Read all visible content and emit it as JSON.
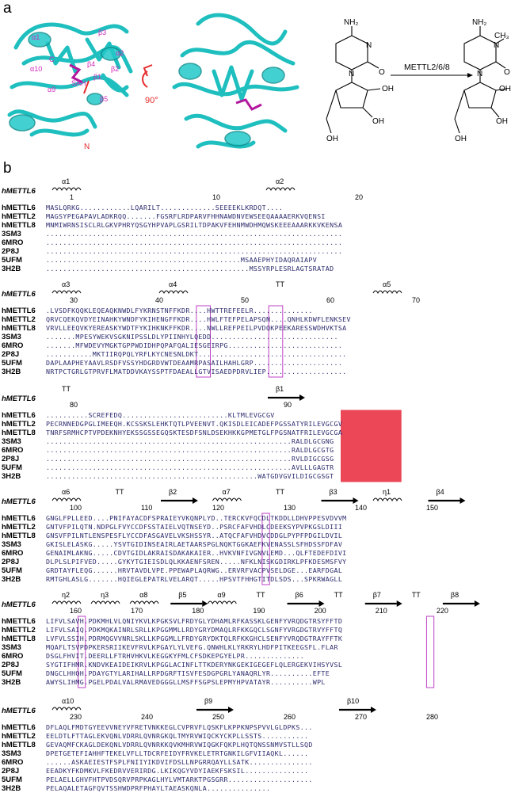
{
  "panel_a": {
    "label": "a",
    "rotation": "90°",
    "residue_labels": [
      "β3",
      "α1",
      "SAH",
      "β4",
      "β1",
      "β2",
      "β5",
      "α10",
      "α2",
      "α9",
      "N",
      "C"
    ],
    "reaction": {
      "enzyme": "METTL2/6/8",
      "substrate_groups": [
        "NH₂",
        "N",
        "N",
        "O",
        "OH",
        "OH",
        "OH"
      ],
      "product_groups": [
        "NH₂",
        "N",
        "CH₃",
        "N",
        "O",
        "OH",
        "OH",
        "OH"
      ]
    }
  },
  "panel_b": {
    "label": "b",
    "blocks": [
      {
        "ref": "hMETTL6",
        "ss_top": [
          "α1",
          "α2"
        ],
        "numbers": [
          "1",
          "10",
          "20"
        ],
        "rows": [
          {
            "name": "hMETTL6",
            "seq": "MASLQRKG............LQARILT.............SEEEEKLKRDQT...."
          },
          {
            "name": "hMETTL2",
            "seq": "MAGSYPEGAPAVLADKRQQ.......FGSRFLRDPARVFHHNAWDNVEWSEEQAAAAERKVQENSI"
          },
          {
            "name": "hMETTL8",
            "seq": "MNMIWRNSISCLRLGKVPHRYQSGYHPVAPLGSRILTDPAKVFEHNMWDHMQWSKEEEAAARKKVKENSA"
          },
          {
            "name": "3SM3",
            "seq": "......................................................................"
          },
          {
            "name": "6MRO",
            "seq": "......................................................................"
          },
          {
            "name": "2P8J",
            "seq": "......................................................................"
          },
          {
            "name": "5UFM",
            "seq": "..............................................MSAAEPHYIDAQRAIAPV"
          },
          {
            "name": "3H2B",
            "seq": "................................................MSSYRPLESRLAGTSRATAD"
          }
        ]
      },
      {
        "ref": "hMETTL6",
        "ss_top": [
          "α3",
          "α4",
          "TT",
          "α5"
        ],
        "numbers": [
          "30",
          "40",
          "50",
          "60",
          "70"
        ],
        "rows": [
          {
            "name": "hMETTL6",
            "seq": ".LVSDFKQQKLEQEAQKNWDLFYKRNSTNFFKDR....HWTTREFEELR.............."
          },
          {
            "name": "hMETTL2",
            "seq": "QRVCQEKQVDYEINAHKYWNDFYKIHENGFFKDR....HWLFTEFPELAPSQN....QNHLKDWFLENKSEV"
          },
          {
            "name": "hMETTL8",
            "seq": "VRVLLEEQVKYEREASKYWDTFYKIHKNKFFKDR....NWLLREFPEILPVDQKPEEKARESSWDHVKTSA"
          },
          {
            "name": "3SM3",
            "seq": ".......MPESYWEKVSGKNIPSSLDLYPIINHYLQEDD.............................."
          },
          {
            "name": "6MRO",
            "seq": ".......MFWDEVYMGKTGPPWDIDHPQPAFQALIESGEIRPG..........................."
          },
          {
            "name": "2P8J",
            "seq": "...........MKTIIRQPQLYRFLKYCNESNLDKT..................................."
          },
          {
            "name": "5UFM",
            "seq": "DAPLAAPHEYAAVLRSDFVSSYHDGRDVWTDEAAMRPASAILHAHLGRP....................."
          },
          {
            "name": "3H2B",
            "seq": "NRTPCTGRLGTPRVFLMATDDVKAYSSPTFDAEALLGTVISAEDPDRVLIEP..................."
          }
        ]
      },
      {
        "ref": "hMETTL6",
        "ss_top": [
          "TT",
          "β1"
        ],
        "numbers": [
          "80",
          "90"
        ],
        "rows": [
          {
            "name": "hMETTL6",
            "seq": "..........SCREFEDQ.........................KLTMLEVGCGV"
          },
          {
            "name": "hMETTL2",
            "seq": "PECRNNEDGPGLIMEEQH.KCSSKSLEHKTQTLPVEENVT.QKISDLEICADEFPGSSATYRILEVGCGV"
          },
          {
            "name": "hMETTL8",
            "seq": "TNRFSRMHCPTVPDEKNHYEKSSGSSEGQSKTESDFSNLDSEKHKKGPMETGLFPGSNATFRILEVGCGA"
          },
          {
            "name": "3SM3",
            "seq": "..........................................................RALDLGCGNG"
          },
          {
            "name": "6MRO",
            "seq": "..........................................................RALDLGCGTG"
          },
          {
            "name": "2P8J",
            "seq": "..........................................................RVLDIGCGSG"
          },
          {
            "name": "5UFM",
            "seq": "..........................................................AVLLLGAGTR"
          },
          {
            "name": "3H2B",
            "seq": "..................................................WATGDVGVILDIGCGSGT"
          }
        ]
      },
      {
        "ref": "hMETTL6",
        "ss_top": [
          "α6",
          "TT",
          "β2",
          "α7",
          "TT",
          "β3",
          "η1",
          "β4"
        ],
        "numbers": [
          "100",
          "110",
          "120",
          "130",
          "140",
          "150"
        ],
        "rows": [
          {
            "name": "hMETTL6",
            "seq": "GNGLFPLLEED....PNIFAYACDFSPRAIEYVKQNPLYD..TERCKVFQCDLTKDDLLDHVPPESVDVVM"
          },
          {
            "name": "hMETTL2",
            "seq": "GNTVFPILQTN.NDPGLFVYCCDFSSTAIELVQTNSEYD..PSRCFAFVHDLCDEEKSYPVPKGSLDIII"
          },
          {
            "name": "hMETTL8",
            "seq": "GNSVFPILNTLENSPESFLYCCDFASGAVELVKSHSSYR..ATQCFAFVHDVCDDGLPYPFPDGILDVIL"
          },
          {
            "name": "3SM3",
            "seq": "GKISLELASKG.....YSVTGIDINSEAIRLAETAARSPGLNQKTGGKAEFKVENASSLSFHDSSFDFAV"
          },
          {
            "name": "6MRO",
            "seq": "GENAIMLAKNG.....CDVTGIDLAKRAISDAKAKAIER..HVKVNFIVGNVLEMD...QLFTEDEFDIVI"
          },
          {
            "name": "2P8J",
            "seq": "DLPLSLPIFVED.....GYKYTGIEISDLQLKKAENFSREN.....NFKLNISKGDIRKLPFKDESMSFVY"
          },
          {
            "name": "5UFM",
            "seq": "GRDTAYFLEQG......HRVTAVDLVPE.PPEWAPLAQRWG..ERVRFVACPVSELDGE...EARFDGAL"
          },
          {
            "name": "3H2B",
            "seq": "RMTGHLASLG.......HQIEGLEPATRLVELARQT.....HPSVTFHHGTITDLSDS...SPKRWAGLL"
          }
        ]
      },
      {
        "ref": "hMETTL6",
        "ss_top": [
          "η2",
          "η3",
          "α8",
          "β5",
          "α9",
          "TT",
          "β6",
          "TT",
          "β7",
          "TT",
          "β8"
        ],
        "numbers": [
          "160",
          "170",
          "180",
          "190",
          "200",
          "210",
          "220"
        ],
        "rows": [
          {
            "name": "hMETTL6",
            "seq": "LIFVLSAVH.PDKMHLVLQNIYKVLKPGKSVLFRDYGLYDHAMLRFKASSKLGENFYVRQDGTRSYFFTD"
          },
          {
            "name": "hMETTL2",
            "seq": "LIFVLSAIQ.PDKMQKAINRLSRLLKPGGMMLLRDYGRYDMAQLRFKKGQCLSGNFYVRGDGTRVYFFTQ"
          },
          {
            "name": "hMETTL8",
            "seq": "LVFVLSSIH.PDRMQGVVNRLSKLLKPGGMLLFRDYGRYDKTQLRFKKGHCLSENFYVRQDGTRAYFFTK"
          },
          {
            "name": "3SM3",
            "seq": "MQAFLTSVPDPKERSRIIKEVFRVLKPGAYLYLVEFG.QNWHLKLYRKRYLHDFPITKEEGSFL.FLAR"
          },
          {
            "name": "6MRO",
            "seq": "DSGLFHVIT.DEERLLFTRHVHKVLKEGGKYFMLCFSDKEPGYELPR.............."
          },
          {
            "name": "2P8J",
            "seq": "SYGTIFHMR.KNDVKEAIDEIKRVLKPGGLACINFLTTKDERYNKGEKIGEGEFLQLERGEKVIHSYVSL"
          },
          {
            "name": "5UFM",
            "seq": "DNGCLHHQH.PDAYGTYLARIHALLRPDGRFTISVFESDGPGRLYANAQRLYR..........EFTE"
          },
          {
            "name": "3H2B",
            "seq": "AWYSLIHMG.PGELPDALVALRMAVEDGGGLLMSFFSGPSLEPMYHPVATAYR..........WPL"
          }
        ]
      },
      {
        "ref": "hMETTL6",
        "ss_top": [
          "α10",
          "β9",
          "β10"
        ],
        "numbers": [
          "230",
          "240",
          "250",
          "260",
          "270",
          "280"
        ],
        "rows": [
          {
            "name": "hMETTL6",
            "seq": "DFLAQLFMDTGYEEVVNEYVFRETVNKKEGLCVPRVFLQSKFLKPPKNPSPVVLGLDPKS..."
          },
          {
            "name": "hMETTL2",
            "seq": "EELDTLFTTAGLEKVQNLVDRRLQVNRGKQLTMYRVWIQCKYCKPLLSSTS..........."
          },
          {
            "name": "hMETTL8",
            "seq": "GEVAQMFCKAGLDEKQNLVDRRLQVNRKKQVKMHRVWIQGKFQKPLHQTQNSSNMVSTLLSQD"
          },
          {
            "name": "3SM3",
            "seq": "DPETGETEFIAHHFTEKELVFLLTDCRFEIDYFRVKELETRTGNKILGFVIIAQKL......"
          },
          {
            "name": "6MRO",
            "seq": "......ASKAEIESTFSPLFNIIYIKDVIFDSLLNPGRRQAYLLSATK..............."
          },
          {
            "name": "2P8J",
            "seq": "EEADKYFKDMKVLFKEDRVVERIRDG.LKIKQGYVDYIAEKFSKSIL..............."
          },
          {
            "name": "5UFM",
            "seq": "PELAELLGHVFHTPVDSQRVPRPKAGLHYLVMTARKTPGSGRR...................."
          },
          {
            "name": "3H2B",
            "seq": "PELAQALETAGFQVTSSHWDPRFPHAYLTAEASKQNLA..............."
          }
        ]
      }
    ]
  }
}
